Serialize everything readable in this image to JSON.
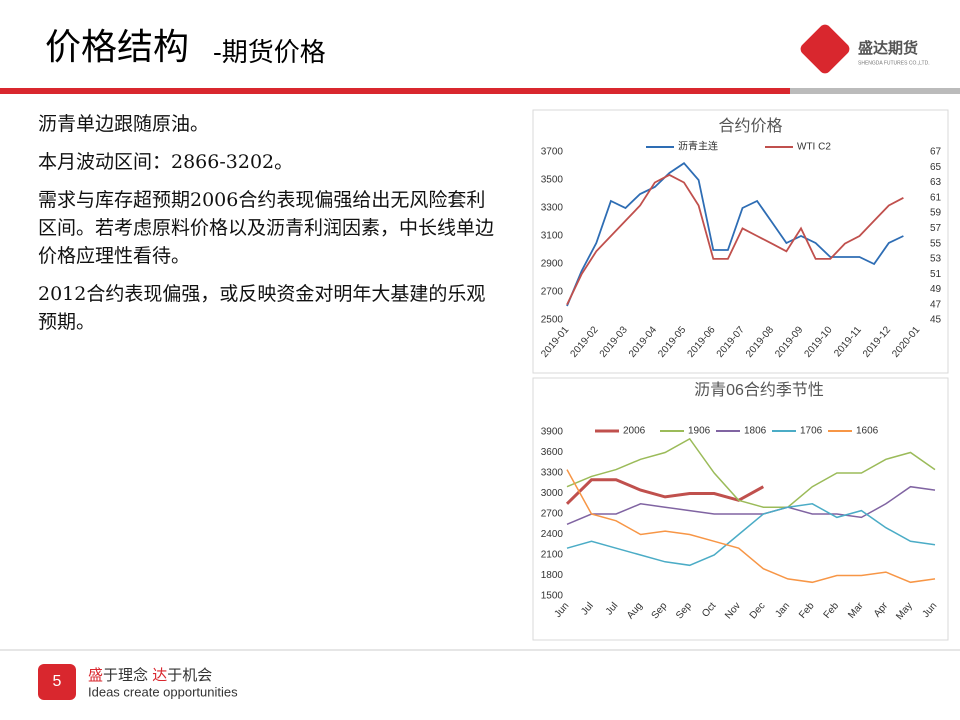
{
  "header": {
    "title": "价格结构",
    "subtitle": "-期货价格",
    "logo": "盛达期货",
    "logo_en": "SHENGDA FUTURES CO.,LTD."
  },
  "body": {
    "paragraphs": [
      "沥青单边跟随原油。",
      "本月波动区间：2866-3202。",
      "需求与库存超预期2006合约表现偏强给出无风险套利区间。若考虑原料价格以及沥青利润因素，中长线单边价格应理性看待。",
      "2012合约表现偏强，或反映资金对明年大基建的乐观预期。"
    ]
  },
  "footer": {
    "page": "5",
    "slogan_a": "盛",
    "slogan_b": "于理念 ",
    "slogan_c": "达",
    "slogan_d": "于机会",
    "slogan_en": "Ideas create opportunities"
  },
  "chart_data": [
    {
      "type": "line",
      "title": "合约价格",
      "categories": [
        "2019-01",
        null,
        "2019-02",
        null,
        "2019-03",
        null,
        "2019-04",
        null,
        "2019-05",
        null,
        "2019-06",
        null,
        "2019-07",
        null,
        "2019-08",
        null,
        "2019-09",
        null,
        "2019-10",
        null,
        "2019-11",
        null,
        "2019-12",
        null,
        "2020-01"
      ],
      "series": [
        {
          "name": "沥青主连",
          "color": "#2e6db4",
          "values": [
            2600,
            2850,
            3050,
            3350,
            3300,
            3400,
            3450,
            3550,
            3620,
            3500,
            3000,
            3000,
            3300,
            3350,
            3200,
            3050,
            3100,
            3050,
            2950,
            2950,
            2950,
            2900,
            3050,
            3100,
            null
          ]
        },
        {
          "name": "WTI C2",
          "color": "#c0504d",
          "axis": "y2",
          "values": [
            47,
            51,
            54,
            56,
            58,
            60,
            63,
            64,
            63,
            60,
            53,
            53,
            57,
            56,
            55,
            54,
            57,
            53,
            53,
            55,
            56,
            58,
            60,
            61,
            null
          ]
        }
      ],
      "ylim": [
        2500,
        3700
      ],
      "yticks": [
        2500,
        2700,
        2900,
        3100,
        3300,
        3500,
        3700
      ],
      "y2lim": [
        45,
        67
      ],
      "y2ticks": [
        45,
        47,
        49,
        51,
        53,
        55,
        57,
        59,
        61,
        63,
        65,
        67
      ],
      "grid": false
    },
    {
      "type": "line",
      "title": "沥青06合约季节性",
      "categories": [
        "Jun",
        "Jul",
        "Jul",
        "Aug",
        "Sep",
        "Sep",
        "Oct",
        "Nov",
        "Dec",
        "Jan",
        "Feb",
        "Feb",
        "Mar",
        "Apr",
        "May",
        "Jun"
      ],
      "series": [
        {
          "name": "2006",
          "color": "#c0504d",
          "values": [
            2850,
            3200,
            3200,
            3050,
            2950,
            3000,
            3000,
            2900,
            3100,
            null,
            null,
            null,
            null,
            null,
            null,
            null
          ]
        },
        {
          "name": "1906",
          "color": "#9bbb59",
          "values": [
            3100,
            3250,
            3350,
            3500,
            3600,
            3800,
            3300,
            2900,
            2800,
            2800,
            3100,
            3300,
            3300,
            3500,
            3600,
            3350
          ]
        },
        {
          "name": "1806",
          "color": "#8064a2",
          "values": [
            2550,
            2700,
            2700,
            2850,
            2800,
            2750,
            2700,
            2700,
            2700,
            2800,
            2700,
            2700,
            2650,
            2850,
            3100,
            3050
          ]
        },
        {
          "name": "1706",
          "color": "#4bacc6",
          "values": [
            2200,
            2300,
            2200,
            2100,
            2000,
            1950,
            2100,
            2400,
            2700,
            2800,
            2850,
            2650,
            2750,
            2500,
            2300,
            2250
          ]
        },
        {
          "name": "1606",
          "color": "#f79646",
          "values": [
            3350,
            2700,
            2600,
            2400,
            2450,
            2400,
            2300,
            2200,
            1900,
            1750,
            1700,
            1800,
            1800,
            1850,
            1700,
            1750
          ]
        }
      ],
      "ylim": [
        1500,
        3900
      ],
      "yticks": [
        1500,
        1800,
        2100,
        2400,
        2700,
        3000,
        3300,
        3600,
        3900
      ],
      "grid": false
    }
  ]
}
